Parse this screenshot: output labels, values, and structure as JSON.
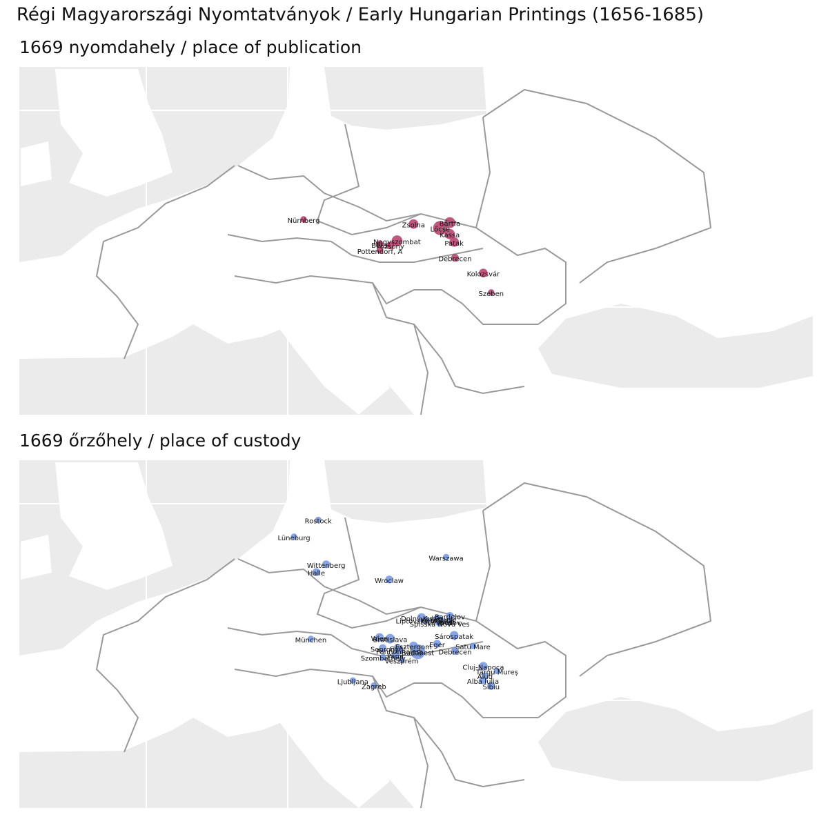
{
  "header": {
    "title": "Régi Magyarországi Nyomtatványok / Early Hungarian Printings (1656-1685)"
  },
  "panels": [
    {
      "title": "1669 nyomdahely / place of publication",
      "color": "#b03060",
      "places": [
        {
          "name": "Nürnberg",
          "lon": 11.08,
          "lat": 49.45,
          "count": 1
        },
        {
          "name": "Zsolna",
          "lon": 18.74,
          "lat": 49.22,
          "count": 4
        },
        {
          "name": "Bártfa",
          "lon": 21.27,
          "lat": 49.29,
          "count": 6
        },
        {
          "name": "Lőcse",
          "lon": 20.59,
          "lat": 49.02,
          "count": 12
        },
        {
          "name": "Kassa",
          "lon": 21.26,
          "lat": 48.72,
          "count": 5
        },
        {
          "name": "Patak",
          "lon": 21.57,
          "lat": 48.32,
          "count": 4
        },
        {
          "name": "Nagyszombat",
          "lon": 17.59,
          "lat": 48.38,
          "count": 6
        },
        {
          "name": "Pozsony",
          "lon": 17.11,
          "lat": 48.15,
          "count": 2
        },
        {
          "name": "Bécs",
          "lon": 16.37,
          "lat": 48.21,
          "count": 2
        },
        {
          "name": "Pottendorf, A",
          "lon": 16.39,
          "lat": 47.9,
          "count": 1
        },
        {
          "name": "Debrecen",
          "lon": 21.63,
          "lat": 47.53,
          "count": 2
        },
        {
          "name": "Kolozsvár",
          "lon": 23.6,
          "lat": 46.77,
          "count": 3
        },
        {
          "name": "Szeben",
          "lon": 24.15,
          "lat": 45.8,
          "count": 1
        }
      ]
    },
    {
      "title": "1669 őrzőhely / place of custody",
      "color": "#6a8fe0",
      "places": [
        {
          "name": "Rostock",
          "lon": 12.1,
          "lat": 54.09,
          "count": 1
        },
        {
          "name": "Lüneburg",
          "lon": 10.41,
          "lat": 53.25,
          "count": 1
        },
        {
          "name": "Wittenberg",
          "lon": 12.65,
          "lat": 51.87,
          "count": 2
        },
        {
          "name": "Halle",
          "lon": 11.97,
          "lat": 51.48,
          "count": 2
        },
        {
          "name": "Warszawa",
          "lon": 21.01,
          "lat": 52.23,
          "count": 1
        },
        {
          "name": "Wroclaw",
          "lon": 17.04,
          "lat": 51.11,
          "count": 2
        },
        {
          "name": "München",
          "lon": 11.58,
          "lat": 48.14,
          "count": 1
        },
        {
          "name": "Ljubljana",
          "lon": 14.51,
          "lat": 46.06,
          "count": 1
        },
        {
          "name": "Zagreb",
          "lon": 15.98,
          "lat": 45.81,
          "count": 1
        },
        {
          "name": "Wien",
          "lon": 16.37,
          "lat": 48.21,
          "count": 3
        },
        {
          "name": "Bratislava",
          "lon": 17.11,
          "lat": 48.15,
          "count": 4
        },
        {
          "name": "Sopron",
          "lon": 16.59,
          "lat": 47.68,
          "count": 2
        },
        {
          "name": "Pannonhalma",
          "lon": 17.76,
          "lat": 47.55,
          "count": 2
        },
        {
          "name": "Győr",
          "lon": 17.63,
          "lat": 47.69,
          "count": 2
        },
        {
          "name": "Esztergom",
          "lon": 18.74,
          "lat": 47.79,
          "count": 3
        },
        {
          "name": "Budapest",
          "lon": 19.04,
          "lat": 47.5,
          "count": 14
        },
        {
          "name": "Pápa",
          "lon": 17.47,
          "lat": 47.33,
          "count": 2
        },
        {
          "name": "Szombathely",
          "lon": 16.62,
          "lat": 47.23,
          "count": 1
        },
        {
          "name": "Veszprém",
          "lon": 17.91,
          "lat": 47.09,
          "count": 1
        },
        {
          "name": "Eger",
          "lon": 20.38,
          "lat": 47.9,
          "count": 2
        },
        {
          "name": "Debrecen",
          "lon": 21.63,
          "lat": 47.53,
          "count": 2
        },
        {
          "name": "Sárospatak",
          "lon": 21.57,
          "lat": 48.32,
          "count": 3
        },
        {
          "name": "Satu Mare",
          "lon": 22.88,
          "lat": 47.79,
          "count": 1
        },
        {
          "name": "Cluj-Napoca",
          "lon": 23.6,
          "lat": 46.77,
          "count": 3
        },
        {
          "name": "Târgu Mureș",
          "lon": 24.56,
          "lat": 46.54,
          "count": 1
        },
        {
          "name": "Aiud",
          "lon": 23.72,
          "lat": 46.31,
          "count": 1
        },
        {
          "name": "Alba Iulia",
          "lon": 23.58,
          "lat": 46.07,
          "count": 2
        },
        {
          "name": "Sibiu",
          "lon": 24.15,
          "lat": 45.79,
          "count": 2
        },
        {
          "name": "Dolný Kubín",
          "lon": 19.3,
          "lat": 49.21,
          "count": 3
        },
        {
          "name": "Liptovský Mikuláš",
          "lon": 19.61,
          "lat": 49.08,
          "count": 2
        },
        {
          "name": "Kežmarok",
          "lon": 20.43,
          "lat": 49.14,
          "count": 3
        },
        {
          "name": "Levoča",
          "lon": 20.59,
          "lat": 49.02,
          "count": 3
        },
        {
          "name": "Spišská Nová Ves",
          "lon": 20.56,
          "lat": 48.94,
          "count": 2
        },
        {
          "name": "Bardejov",
          "lon": 21.27,
          "lat": 49.29,
          "count": 2
        },
        {
          "name": "Prešov",
          "lon": 21.24,
          "lat": 49.0,
          "count": 2
        }
      ]
    }
  ]
}
